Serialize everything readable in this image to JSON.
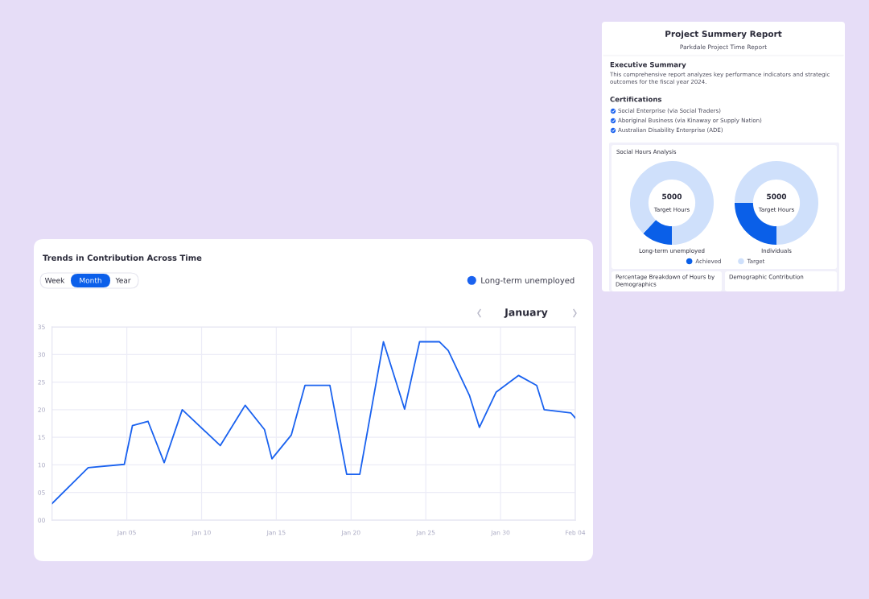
{
  "chart_data": [
    {
      "type": "line",
      "title": "Trends in Contribution Across Time",
      "x": [
        "2023-12-31",
        "2024-01-02T10:00",
        "2024-01-04T20:00",
        "2024-01-05T09:00",
        "2024-01-06T10:00",
        "2024-01-07T12:00",
        "2024-01-08T17:00",
        "2024-01-11T06:00",
        "2024-01-12T22:00",
        "2024-01-14T05:00",
        "2024-01-14T17:00",
        "2024-01-16T00:00",
        "2024-01-16T22:00",
        "2024-01-18T14:00",
        "2024-01-19T17:00",
        "2024-01-20T14:00",
        "2024-01-22T04:00",
        "2024-01-23T14:00",
        "2024-01-24T14:00",
        "2024-01-25T22:00",
        "2024-01-26T12:00",
        "2024-01-27T22:00",
        "2024-01-28T14:00",
        "2024-01-29T17:00",
        "2024-01-31T05:00",
        "2024-02-01T10:00",
        "2024-02-01T22:00",
        "2024-02-03T17:00",
        "2024-02-04"
      ],
      "series": [
        {
          "name": "Long-term unemployed",
          "color": "#1a62ef",
          "values": [
            3.0,
            9.5,
            10.1,
            17.1,
            17.9,
            10.4,
            20.0,
            13.5,
            20.8,
            16.4,
            11.1,
            15.4,
            24.4,
            24.4,
            8.3,
            8.3,
            32.3,
            20.1,
            32.3,
            32.3,
            30.7,
            22.6,
            16.8,
            23.2,
            26.2,
            24.4,
            20.0,
            19.4,
            18.5
          ]
        }
      ],
      "xlim": [
        "2023-12-31",
        "2024-02-04"
      ],
      "xticks": [
        {
          "value": "2024-01-05",
          "label": "Jan 05"
        },
        {
          "value": "2024-01-10",
          "label": "Jan 10"
        },
        {
          "value": "2024-01-15",
          "label": "Jan 15"
        },
        {
          "value": "2024-01-20",
          "label": "Jan 20"
        },
        {
          "value": "2024-01-25",
          "label": "Jan 25"
        },
        {
          "value": "2024-01-30",
          "label": "Jan 30"
        },
        {
          "value": "2024-02-04",
          "label": "Feb 04"
        }
      ],
      "ylim": [
        0,
        35
      ],
      "yticks": [
        {
          "value": 0,
          "label": "00"
        },
        {
          "value": 5,
          "label": "05"
        },
        10,
        15,
        20,
        25,
        30,
        35
      ],
      "grid": true,
      "legend": "top right",
      "annotations": [
        "Week",
        "Month",
        "Year",
        "January"
      ]
    },
    {
      "type": "other",
      "title": "Project Summery Report",
      "subtitle": "Parkdale Project Time Report",
      "annotations": [
        "Executive Summary",
        "This comprehensive report analyzes key performance indicators and strategic outcomes for the fiscal year 2024.",
        "Certifications",
        "Social Enterprise (via Social Traders)",
        "Aboriginal Business (via Kinaway or Supply Nation)",
        "Australian Disability Enterprise (ADE)",
        "Percentage Breakdown of Hours by Demographics",
        "Demographic Contribution"
      ]
    },
    {
      "type": "donut",
      "title": "Social Hours Analysis",
      "categories": [
        "Achieved",
        "Target"
      ],
      "values": [
        12,
        88
      ],
      "colors": [
        "#0a5fe8",
        "#cfe0fb"
      ],
      "xlabel": "Long-term unemployed",
      "annotations": [
        "5000",
        "Target Hours"
      ],
      "legend": "bottom"
    },
    {
      "type": "donut",
      "values": [
        25,
        75
      ],
      "colors": [
        "#0a5fe8",
        "#cfe0fb"
      ],
      "xlabel": "Individuals",
      "annotations": [
        "5000",
        "Target Hours"
      ]
    }
  ]
}
